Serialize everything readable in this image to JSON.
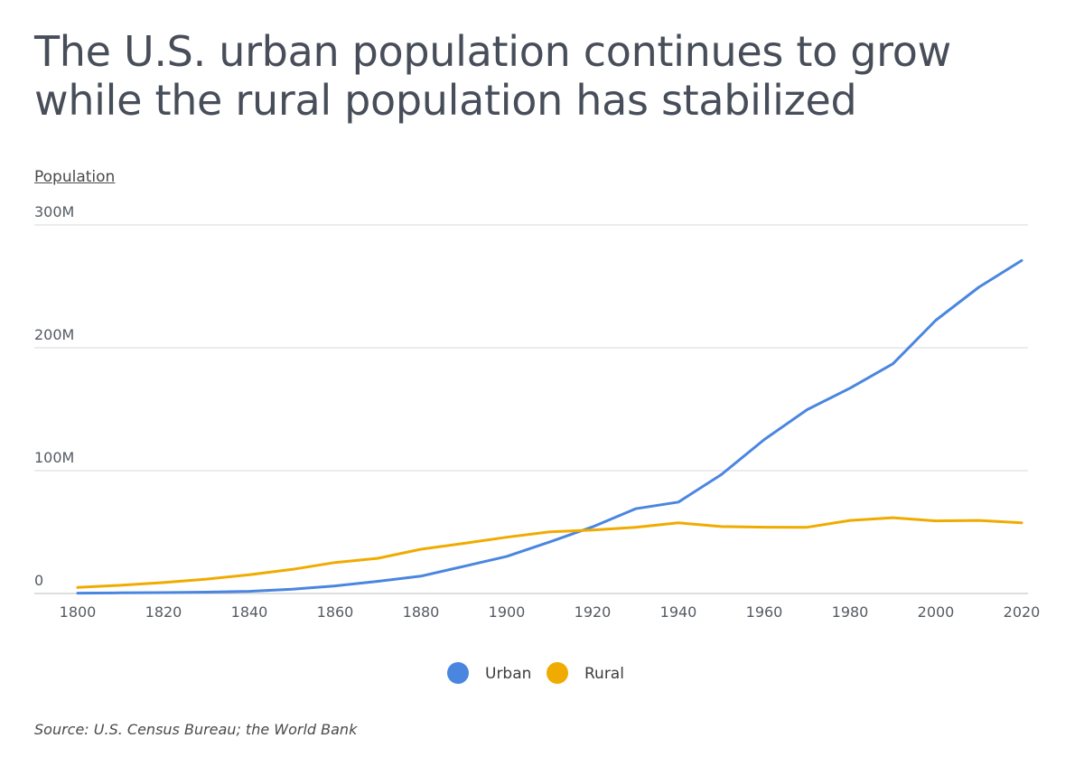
{
  "page": {
    "title": "The U.S. urban population continues to grow while the rural population has stabilized",
    "source": "Source:  U.S. Census Bureau; the World Bank"
  },
  "chart_data": {
    "type": "line",
    "ylabel": "Population",
    "xlabel": "",
    "x": [
      1800,
      1810,
      1820,
      1830,
      1840,
      1850,
      1860,
      1870,
      1880,
      1890,
      1900,
      1910,
      1920,
      1930,
      1940,
      1950,
      1960,
      1970,
      1980,
      1990,
      2000,
      2010,
      2020
    ],
    "series": [
      {
        "name": "Urban",
        "color": "#4a86e0",
        "values": [
          0.3,
          0.5,
          0.7,
          1.1,
          1.8,
          3.5,
          6.2,
          9.9,
          14.1,
          22.1,
          30.2,
          42.0,
          54.3,
          69.0,
          74.4,
          96.8,
          125.3,
          149.6,
          167.1,
          187.0,
          222.4,
          249.3,
          271.0
        ]
      },
      {
        "name": "Rural",
        "color": "#f0ab00",
        "values": [
          4.9,
          6.7,
          8.9,
          11.7,
          15.2,
          19.6,
          25.2,
          28.7,
          36.0,
          40.8,
          45.8,
          50.2,
          51.6,
          53.8,
          57.5,
          54.5,
          54.0,
          53.9,
          59.5,
          61.7,
          59.1,
          59.5,
          57.5
        ]
      }
    ],
    "xticks": [
      1800,
      1820,
      1840,
      1860,
      1880,
      1900,
      1920,
      1940,
      1960,
      1980,
      2000,
      2020
    ],
    "yticks": [
      {
        "value": 0,
        "label": "0"
      },
      {
        "value": 100,
        "label": "100M"
      },
      {
        "value": 200,
        "label": "200M"
      },
      {
        "value": 300,
        "label": "300M"
      }
    ],
    "xlim": [
      1800,
      2020
    ],
    "ylim": [
      0,
      300
    ],
    "grid": true,
    "legend": "bottom-center"
  }
}
